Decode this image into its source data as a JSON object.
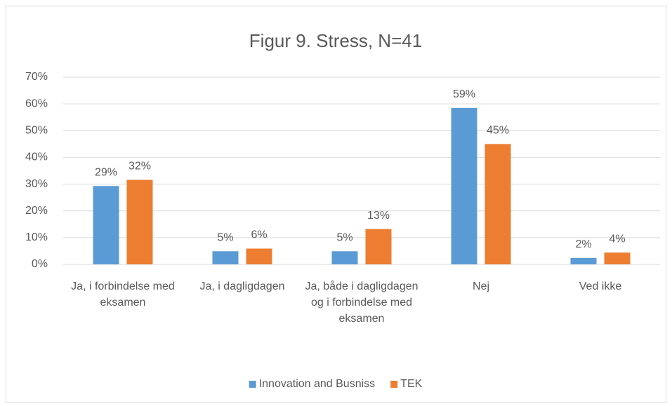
{
  "chart_data": {
    "type": "bar",
    "title": "Figur 9. Stress, N=41",
    "categories": [
      "Ja, i forbindelse med eksamen",
      "Ja, i dagligdagen",
      "Ja, både i dagligdagen og i forbindelse med eksamen",
      "Nej",
      "Ved ikke"
    ],
    "series": [
      {
        "name": "Innovation and Busniss",
        "color": "#5b9bd5",
        "values": [
          29.3,
          4.9,
          4.9,
          58.5,
          2.4
        ],
        "value_labels": [
          "29%",
          "5%",
          "5%",
          "59%",
          "2%"
        ]
      },
      {
        "name": "TEK",
        "color": "#ed7d31",
        "values": [
          31.6,
          5.9,
          13.2,
          45.0,
          4.4
        ],
        "value_labels": [
          "32%",
          "6%",
          "13%",
          "45%",
          "4%"
        ]
      }
    ],
    "ylim": [
      0,
      70
    ],
    "yticks": [
      {
        "value": 0,
        "label": "0%"
      },
      {
        "value": 10,
        "label": "10%"
      },
      {
        "value": 20,
        "label": "20%"
      },
      {
        "value": 30,
        "label": "30%"
      },
      {
        "value": 40,
        "label": "40%"
      },
      {
        "value": 50,
        "label": "50%"
      },
      {
        "value": 60,
        "label": "60%"
      },
      {
        "value": 70,
        "label": "70%"
      }
    ],
    "grid": true,
    "legend": "bottom"
  }
}
